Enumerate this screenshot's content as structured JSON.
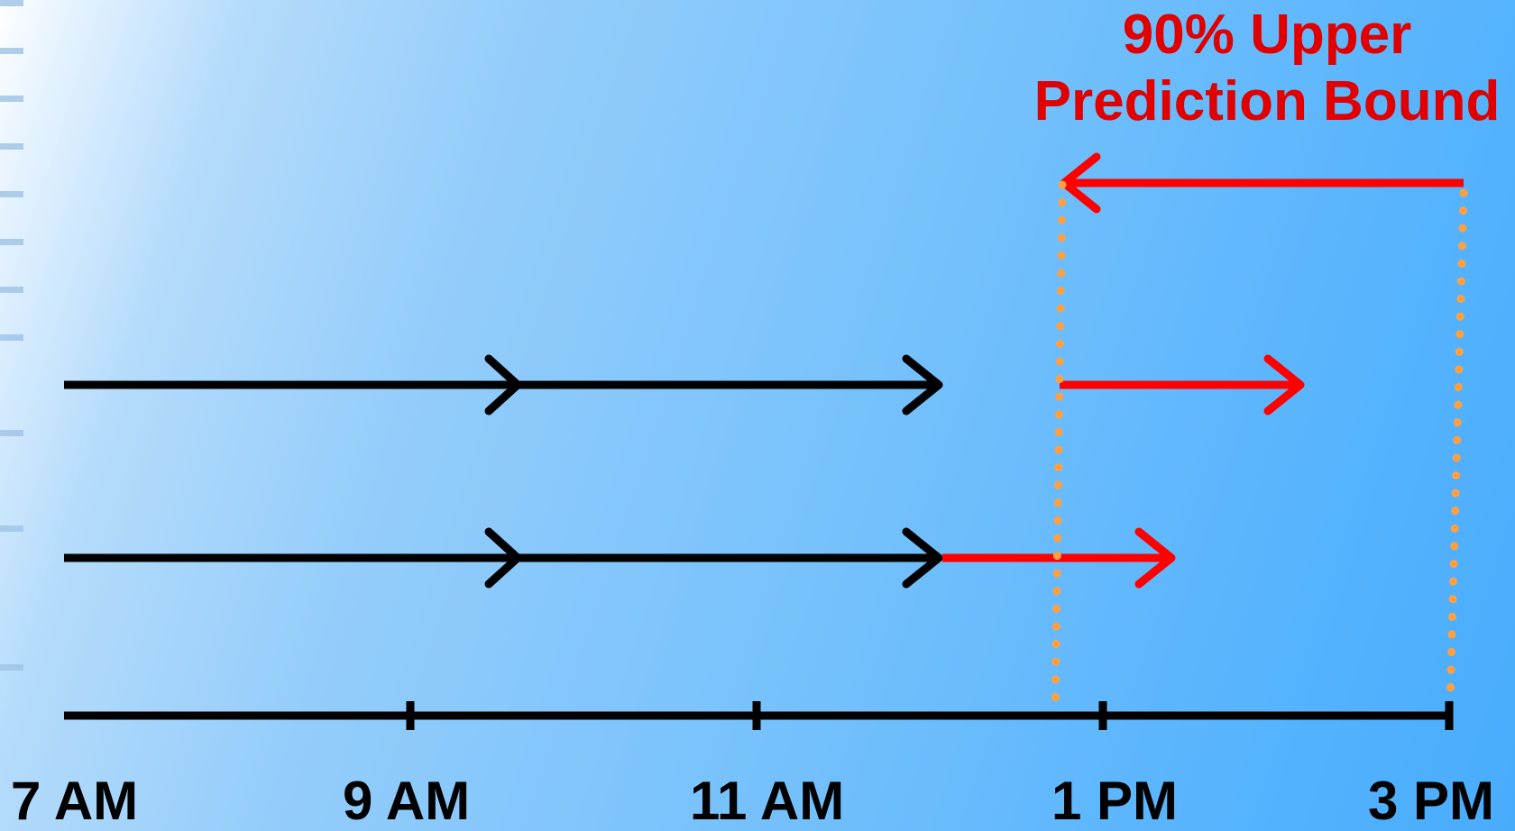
{
  "annotation": {
    "line1": "90% Upper",
    "line2": "Prediction Bound"
  },
  "axis": {
    "tick_labels": [
      "7 AM",
      "9 AM",
      "11 AM",
      "1 PM",
      "3 PM"
    ]
  },
  "colors": {
    "past": "#000000",
    "predicted": "#ff0000",
    "bound": "#ffa040",
    "annotation": "#e00000",
    "background_light": "#ffffff",
    "background_dark": "#48acfd"
  }
}
